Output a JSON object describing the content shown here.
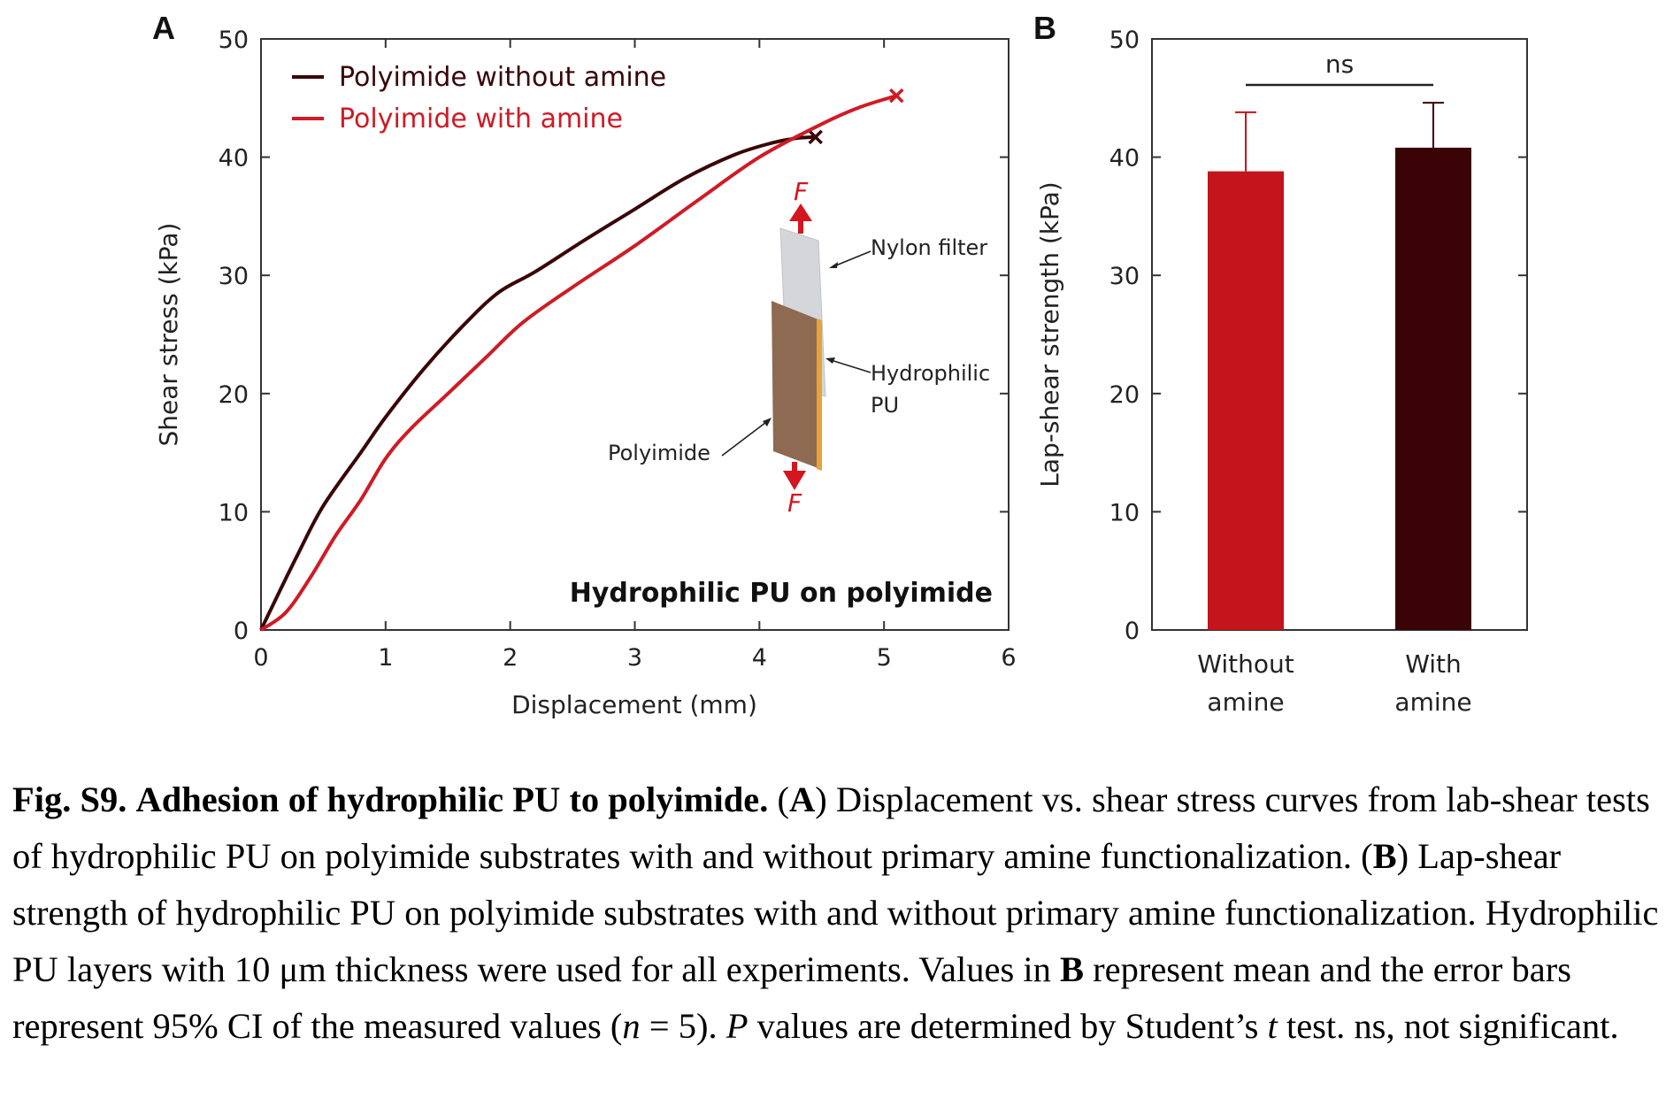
{
  "figure": {
    "panel_a_letter": "A",
    "panel_b_letter": "B",
    "panel_a_annotation": "Hydrophilic PU on polyimide",
    "inset": {
      "force_label_top": "F",
      "force_label_bottom": "F",
      "nylon_label": "Nylon filter",
      "pu_label_line1": "Hydrophilic",
      "pu_label_line2": "PU",
      "polyimide_label": "Polyimide"
    },
    "significance_label": "ns",
    "colors": {
      "without_amine": "#3a0508",
      "with_amine": "#cf1b25",
      "bar_without": "#c4141c",
      "bar_with": "#3a0406"
    }
  },
  "chart_data": [
    {
      "type": "line",
      "xlabel": "Displacement (mm)",
      "ylabel": "Shear stress (kPa)",
      "xlim": [
        0,
        6
      ],
      "ylim": [
        0,
        50
      ],
      "xticks": [
        0,
        1,
        2,
        3,
        4,
        5,
        6
      ],
      "yticks": [
        0,
        10,
        20,
        30,
        40,
        50
      ],
      "legend_position": "top-left",
      "series": [
        {
          "name": "Polyimide without amine",
          "color": "#3a0508",
          "x": [
            0,
            0.1,
            0.3,
            0.5,
            0.8,
            1.0,
            1.3,
            1.6,
            1.9,
            2.2,
            2.6,
            3.0,
            3.4,
            3.8,
            4.1,
            4.3,
            4.45
          ],
          "y": [
            0,
            2.2,
            6.5,
            10.5,
            15,
            18,
            22,
            25.5,
            28.5,
            30.3,
            33,
            35.6,
            38.2,
            40.2,
            41.2,
            41.6,
            41.7
          ],
          "end_marker": "x"
        },
        {
          "name": "Polyimide with amine",
          "color": "#cf1b25",
          "x": [
            0,
            0.2,
            0.4,
            0.6,
            0.8,
            1.0,
            1.2,
            1.5,
            1.8,
            2.1,
            2.5,
            3.0,
            3.5,
            4.0,
            4.5,
            4.8,
            5.1
          ],
          "y": [
            0,
            1.5,
            4.5,
            8,
            11,
            14.5,
            17,
            20,
            23,
            26,
            29,
            32.5,
            36.3,
            40,
            42.8,
            44.2,
            45.2
          ],
          "end_marker": "x"
        }
      ]
    },
    {
      "type": "bar",
      "categories": [
        "Without amine",
        "With amine"
      ],
      "category_lines": [
        [
          "Without",
          "amine"
        ],
        [
          "With",
          "amine"
        ]
      ],
      "values": [
        38.8,
        40.8
      ],
      "error_upper": [
        43.8,
        44.6
      ],
      "ylabel": "Lap-shear strength (kPa)",
      "ylim": [
        0,
        50
      ],
      "yticks": [
        0,
        10,
        20,
        30,
        40,
        50
      ]
    }
  ],
  "caption": {
    "fig_label": "Fig. S9.",
    "fig_title": "Adhesion of hydrophilic PU to polyimide.",
    "a_open": "(",
    "a_letter": "A",
    "a_close": ")",
    "a_text": "Displacement vs. shear stress curves from lab-shear tests of hydrophilic PU on polyimide substrates with and without primary amine functionalization.",
    "b_open": "(",
    "b_letter": "B",
    "b_close": ")",
    "b_text": "Lap-shear strength of hydrophilic PU on polyimide substrates with and without primary amine functionalization. Hydrophilic PU layers with 10 μm thickness were used for all experiments. Values in",
    "b_ref": "B",
    "b_text2": "represent mean and the error bars represent 95% CI of the measured values (",
    "n_var": "n",
    "n_eq": "= 5).",
    "p_var": "P",
    "p_text": "values are determined by Student’s",
    "t_var": "t",
    "t_text": "test. ns, not significant."
  }
}
